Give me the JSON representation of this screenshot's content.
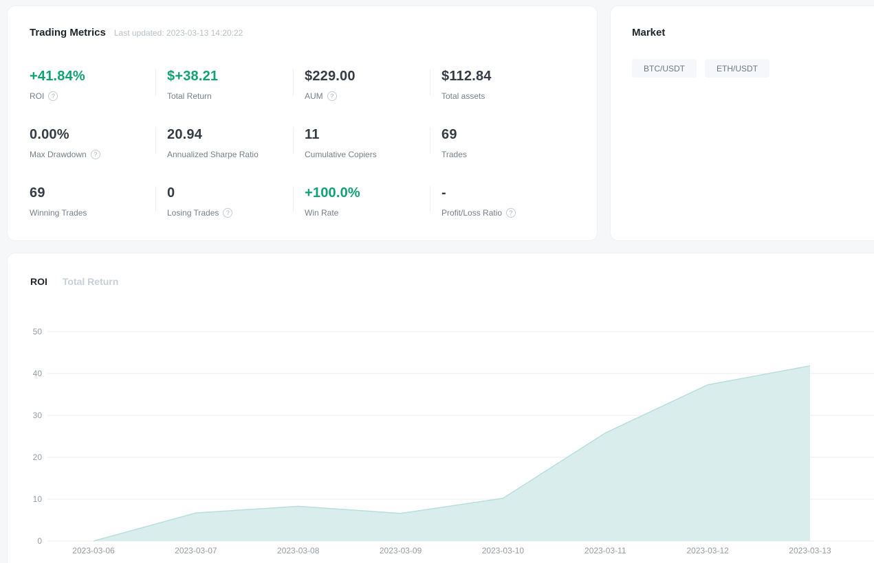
{
  "trading_metrics": {
    "title": "Trading Metrics",
    "last_updated": "Last updated: 2023-03-13 14:20:22",
    "metrics": [
      {
        "value": "+41.84%",
        "label": "ROI",
        "color": "green",
        "help": true
      },
      {
        "value": "$+38.21",
        "label": "Total Return",
        "color": "green",
        "help": false
      },
      {
        "value": "$229.00",
        "label": "AUM",
        "color": "dark",
        "help": true
      },
      {
        "value": "$112.84",
        "label": "Total assets",
        "color": "dark",
        "help": false
      },
      {
        "value": "0.00%",
        "label": "Max Drawdown",
        "color": "dark",
        "help": true
      },
      {
        "value": "20.94",
        "label": "Annualized Sharpe Ratio",
        "color": "dark",
        "help": false
      },
      {
        "value": "11",
        "label": "Cumulative Copiers",
        "color": "dark",
        "help": false
      },
      {
        "value": "69",
        "label": "Trades",
        "color": "dark",
        "help": false
      },
      {
        "value": "69",
        "label": "Winning Trades",
        "color": "dark",
        "help": false
      },
      {
        "value": "0",
        "label": "Losing Trades",
        "color": "dark",
        "help": true
      },
      {
        "value": "+100.0%",
        "label": "Win Rate",
        "color": "green",
        "help": false
      },
      {
        "value": "-",
        "label": "Profit/Loss Ratio",
        "color": "dark",
        "help": true
      }
    ]
  },
  "market": {
    "title": "Market",
    "pairs": [
      "BTC/USDT",
      "ETH/USDT"
    ]
  },
  "chart_tabs": [
    {
      "label": "ROI",
      "active": true
    },
    {
      "label": "Total Return",
      "active": false
    }
  ],
  "chart_data": {
    "type": "area",
    "title": "ROI",
    "x": [
      "2023-03-06",
      "2023-03-07",
      "2023-03-08",
      "2023-03-09",
      "2023-03-10",
      "2023-03-11",
      "2023-03-12",
      "2023-03-13"
    ],
    "series": [
      {
        "name": "ROI",
        "values": [
          0,
          6.7,
          8.3,
          6.6,
          10.2,
          25.8,
          37.3,
          41.84
        ]
      }
    ],
    "xlabel": "",
    "ylabel": "",
    "ylim": [
      0,
      50
    ],
    "yticks": [
      0,
      10,
      20,
      30,
      40,
      50
    ],
    "grid": true,
    "legend": false,
    "fill_color": "#d9edec",
    "line_color": "#b8dfdc",
    "gridline_color": "#ededf0",
    "tick_color": "#959ba3"
  },
  "colors": {
    "green": "#11a271",
    "dark": "#353c45"
  }
}
